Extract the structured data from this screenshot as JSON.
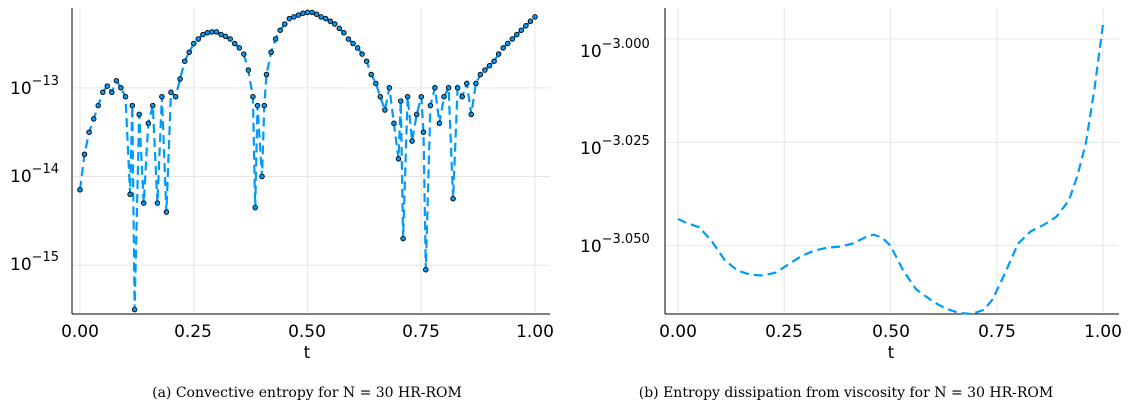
{
  "chart_data": [
    {
      "id": "a",
      "type": "line",
      "caption": "(a) Convective entropy for N = 30 HR-ROM",
      "xlabel": "t",
      "ylabel": "",
      "yscale": "log10",
      "xlim": [
        0,
        1
      ],
      "ylim_log10": [
        -15.55,
        -12.1
      ],
      "x_ticks": [
        "0.00",
        "0.25",
        "0.50",
        "0.75",
        "1.00"
      ],
      "y_ticks": [
        {
          "base": "10",
          "exp": "−13"
        },
        {
          "base": "10",
          "exp": "−14"
        },
        {
          "base": "10",
          "exp": "−15"
        }
      ],
      "grid": true,
      "legend": "none",
      "line_color": "#009af9",
      "line_style": "dashed",
      "markers": "circles",
      "marker_fill": "#009af9",
      "marker_edge": "#000000",
      "series": [
        {
          "points": [
            [
              0.0,
              -14.15
            ],
            [
              0.01,
              -13.75
            ],
            [
              0.02,
              -13.5
            ],
            [
              0.03,
              -13.35
            ],
            [
              0.04,
              -13.2
            ],
            [
              0.05,
              -13.05
            ],
            [
              0.06,
              -12.98
            ],
            [
              0.07,
              -13.05
            ],
            [
              0.08,
              -12.92
            ],
            [
              0.09,
              -13.0
            ],
            [
              0.1,
              -13.1
            ],
            [
              0.11,
              -14.2
            ],
            [
              0.115,
              -13.2
            ],
            [
              0.12,
              -15.5
            ],
            [
              0.13,
              -13.3
            ],
            [
              0.14,
              -14.3
            ],
            [
              0.15,
              -13.4
            ],
            [
              0.16,
              -13.2
            ],
            [
              0.17,
              -14.3
            ],
            [
              0.18,
              -13.1
            ],
            [
              0.19,
              -14.4
            ],
            [
              0.2,
              -13.05
            ],
            [
              0.21,
              -13.1
            ],
            [
              0.22,
              -12.9
            ],
            [
              0.23,
              -12.7
            ],
            [
              0.24,
              -12.6
            ],
            [
              0.25,
              -12.5
            ],
            [
              0.26,
              -12.45
            ],
            [
              0.27,
              -12.4
            ],
            [
              0.28,
              -12.38
            ],
            [
              0.29,
              -12.37
            ],
            [
              0.3,
              -12.37
            ],
            [
              0.31,
              -12.4
            ],
            [
              0.32,
              -12.42
            ],
            [
              0.33,
              -12.45
            ],
            [
              0.34,
              -12.5
            ],
            [
              0.35,
              -12.55
            ],
            [
              0.36,
              -12.62
            ],
            [
              0.37,
              -12.8
            ],
            [
              0.38,
              -13.1
            ],
            [
              0.385,
              -14.35
            ],
            [
              0.39,
              -13.2
            ],
            [
              0.4,
              -14.0
            ],
            [
              0.405,
              -13.2
            ],
            [
              0.41,
              -12.85
            ],
            [
              0.42,
              -12.6
            ],
            [
              0.43,
              -12.45
            ],
            [
              0.44,
              -12.35
            ],
            [
              0.45,
              -12.28
            ],
            [
              0.46,
              -12.22
            ],
            [
              0.47,
              -12.2
            ],
            [
              0.48,
              -12.18
            ],
            [
              0.49,
              -12.16
            ],
            [
              0.5,
              -12.15
            ],
            [
              0.51,
              -12.15
            ],
            [
              0.52,
              -12.17
            ],
            [
              0.53,
              -12.2
            ],
            [
              0.54,
              -12.22
            ],
            [
              0.55,
              -12.25
            ],
            [
              0.56,
              -12.28
            ],
            [
              0.57,
              -12.33
            ],
            [
              0.58,
              -12.38
            ],
            [
              0.59,
              -12.45
            ],
            [
              0.6,
              -12.5
            ],
            [
              0.61,
              -12.55
            ],
            [
              0.62,
              -12.62
            ],
            [
              0.63,
              -12.7
            ],
            [
              0.64,
              -12.85
            ],
            [
              0.65,
              -12.95
            ],
            [
              0.66,
              -13.1
            ],
            [
              0.67,
              -13.25
            ],
            [
              0.68,
              -13.0
            ],
            [
              0.69,
              -13.4
            ],
            [
              0.7,
              -13.8
            ],
            [
              0.705,
              -13.15
            ],
            [
              0.71,
              -14.7
            ],
            [
              0.72,
              -13.1
            ],
            [
              0.73,
              -13.6
            ],
            [
              0.74,
              -13.3
            ],
            [
              0.75,
              -13.1
            ],
            [
              0.755,
              -13.5
            ],
            [
              0.76,
              -15.05
            ],
            [
              0.77,
              -13.2
            ],
            [
              0.78,
              -13.0
            ],
            [
              0.79,
              -13.4
            ],
            [
              0.8,
              -13.1
            ],
            [
              0.81,
              -13.0
            ],
            [
              0.82,
              -14.25
            ],
            [
              0.83,
              -13.0
            ],
            [
              0.84,
              -13.1
            ],
            [
              0.85,
              -12.95
            ],
            [
              0.86,
              -13.3
            ],
            [
              0.87,
              -12.95
            ],
            [
              0.88,
              -12.85
            ],
            [
              0.89,
              -12.8
            ],
            [
              0.9,
              -12.75
            ],
            [
              0.91,
              -12.7
            ],
            [
              0.92,
              -12.62
            ],
            [
              0.93,
              -12.55
            ],
            [
              0.94,
              -12.5
            ],
            [
              0.95,
              -12.45
            ],
            [
              0.96,
              -12.4
            ],
            [
              0.97,
              -12.35
            ],
            [
              0.98,
              -12.3
            ],
            [
              0.99,
              -12.25
            ],
            [
              1.0,
              -12.2
            ]
          ]
        }
      ]
    },
    {
      "id": "b",
      "type": "line",
      "caption": "(b) Entropy dissipation from viscosity for N = 30 HR-ROM",
      "xlabel": "t",
      "ylabel": "",
      "yscale": "log10",
      "xlim": [
        0,
        1
      ],
      "ylim_log10": [
        -3.0665,
        -2.9925
      ],
      "x_ticks": [
        "0.00",
        "0.25",
        "0.50",
        "0.75",
        "1.00"
      ],
      "y_ticks": [
        {
          "base": "10",
          "exp": "−3.000"
        },
        {
          "base": "10",
          "exp": "−3.025"
        },
        {
          "base": "10",
          "exp": "−3.050"
        }
      ],
      "grid": true,
      "legend": "none",
      "line_color": "#009af9",
      "line_style": "dashed",
      "markers": "none",
      "series": [
        {
          "points": [
            [
              0.0,
              -3.0435
            ],
            [
              0.02,
              -3.0445
            ],
            [
              0.05,
              -3.0455
            ],
            [
              0.08,
              -3.049
            ],
            [
              0.11,
              -3.0535
            ],
            [
              0.14,
              -3.056
            ],
            [
              0.17,
              -3.057
            ],
            [
              0.2,
              -3.0572
            ],
            [
              0.23,
              -3.0565
            ],
            [
              0.26,
              -3.0545
            ],
            [
              0.29,
              -3.0525
            ],
            [
              0.32,
              -3.0512
            ],
            [
              0.35,
              -3.0505
            ],
            [
              0.38,
              -3.0502
            ],
            [
              0.41,
              -3.0495
            ],
            [
              0.44,
              -3.048
            ],
            [
              0.46,
              -3.0473
            ],
            [
              0.48,
              -3.048
            ],
            [
              0.5,
              -3.05
            ],
            [
              0.53,
              -3.056
            ],
            [
              0.56,
              -3.0605
            ],
            [
              0.6,
              -3.0635
            ],
            [
              0.63,
              -3.0652
            ],
            [
              0.66,
              -3.0662
            ],
            [
              0.69,
              -3.0665
            ],
            [
              0.72,
              -3.0655
            ],
            [
              0.74,
              -3.063
            ],
            [
              0.77,
              -3.0565
            ],
            [
              0.8,
              -3.0495
            ],
            [
              0.83,
              -3.0465
            ],
            [
              0.86,
              -3.045
            ],
            [
              0.89,
              -3.043
            ],
            [
              0.92,
              -3.039
            ],
            [
              0.94,
              -3.033
            ],
            [
              0.96,
              -3.025
            ],
            [
              0.98,
              -3.012
            ],
            [
              1.0,
              -2.9965
            ]
          ]
        }
      ]
    }
  ]
}
